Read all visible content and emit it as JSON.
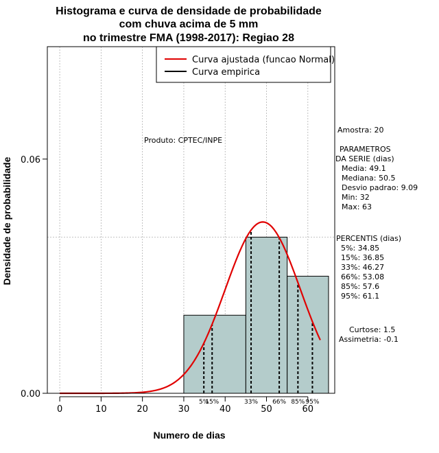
{
  "chart_data": {
    "type": "histogram",
    "title_lines": [
      "Histograma e curva de densidade de probabilidade",
      "com chuva acima de 5 mm",
      "no trimestre FMA (1998-2017): Regiao 28"
    ],
    "xlabel": "Numero de dias",
    "ylabel": "Densidade de probabilidade",
    "xlim": [
      -3,
      66.5
    ],
    "ylim": [
      0,
      0.0888
    ],
    "xticks": [
      0,
      10,
      20,
      30,
      40,
      50,
      60
    ],
    "yticks": [
      0.0,
      0.06
    ],
    "ytick_labels": [
      "0.00",
      "0.06"
    ],
    "grid_x": [
      0,
      10,
      20,
      30,
      40,
      50,
      60
    ],
    "grid_y": [
      0.04
    ],
    "bins": [
      {
        "start": 30,
        "end": 45,
        "density": 0.02
      },
      {
        "start": 45,
        "end": 55,
        "density": 0.04
      },
      {
        "start": 55,
        "end": 65,
        "density": 0.03
      }
    ],
    "bar_fill": "#b4cccb",
    "normal_curve": {
      "mean": 49.1,
      "sd": 9.09,
      "x_range": [
        0,
        63
      ],
      "color": "#e00000"
    },
    "empirical_curve_color": "#000000",
    "percentile_lines": [
      {
        "label": "5%",
        "x": 34.85
      },
      {
        "label": "15%",
        "x": 36.85
      },
      {
        "label": "33%",
        "x": 46.27
      },
      {
        "label": "66%",
        "x": 53.08
      },
      {
        "label": "85%",
        "x": 57.6
      },
      {
        "label": "95%",
        "x": 61.1
      }
    ],
    "legend": {
      "placement": "top-right",
      "entries": [
        {
          "label": "Curva ajustada (funcao Normal)",
          "color": "#e00000"
        },
        {
          "label": "Curva empirica",
          "color": "#000000"
        }
      ]
    },
    "annotation": "Produto: CPTEC/INPE"
  },
  "stats": {
    "amostra": "Amostra: 20",
    "parametros_title_1": "PARAMETROS",
    "parametros_title_2": "DA SERIE (dias)",
    "media": "Media: 49.1",
    "mediana": "Mediana: 50.5",
    "desvio": "Desvio padrao: 9.09",
    "min": "Min: 32",
    "max": "Max: 63",
    "percentis_title": "PERCENTIS (dias)",
    "p5": "5%: 34.85",
    "p15": "15%: 36.85",
    "p33": "33%: 46.27",
    "p66": "66%: 53.08",
    "p85": "85%: 57.6",
    "p95": "95%: 61.1",
    "curtose": "Curtose: 1.5",
    "assimetria": "Assimetria: -0.1"
  }
}
